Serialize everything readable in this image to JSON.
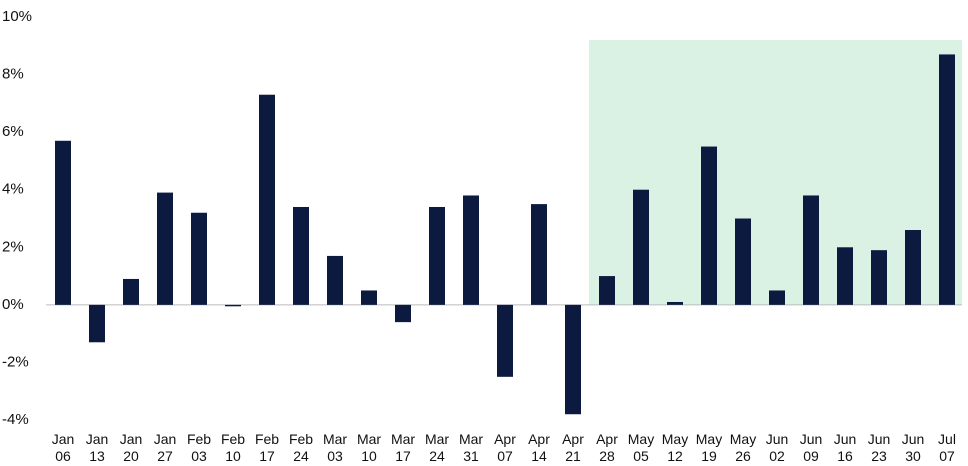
{
  "chart_data": {
    "type": "bar",
    "categories": [
      "Jan 06",
      "Jan 13",
      "Jan 20",
      "Jan 27",
      "Feb 03",
      "Feb 10",
      "Feb 17",
      "Feb 24",
      "Mar 03",
      "Mar 10",
      "Mar 17",
      "Mar 24",
      "Mar 31",
      "Apr 07",
      "Apr 14",
      "Apr 21",
      "Apr 28",
      "May 05",
      "May 12",
      "May 19",
      "May 26",
      "Jun 02",
      "Jun 09",
      "Jun 16",
      "Jun 23",
      "Jun 30",
      "Jul 07"
    ],
    "values": [
      5.7,
      -1.3,
      0.9,
      3.9,
      3.2,
      -0.05,
      7.3,
      3.4,
      1.7,
      0.5,
      -0.6,
      3.4,
      3.8,
      -2.5,
      3.5,
      -3.8,
      1.0,
      4.0,
      0.1,
      5.5,
      3.0,
      0.5,
      3.8,
      2.0,
      1.9,
      2.6,
      8.7
    ],
    "color": "#0c1a40",
    "shaded_from": "Apr 28",
    "shade_top": 9.2,
    "shade_color": "#daf2e4",
    "ylim": [
      -4,
      10
    ],
    "yticks": [
      {
        "value": -4,
        "label": "-4%"
      },
      {
        "value": -2,
        "label": "-2%"
      },
      {
        "value": 0,
        "label": "0%"
      },
      {
        "value": 2,
        "label": "2%"
      },
      {
        "value": 4,
        "label": "4%"
      },
      {
        "value": 6,
        "label": "6%"
      },
      {
        "value": 8,
        "label": "8%"
      },
      {
        "value": 10,
        "label": "10%"
      }
    ],
    "grid": false
  }
}
